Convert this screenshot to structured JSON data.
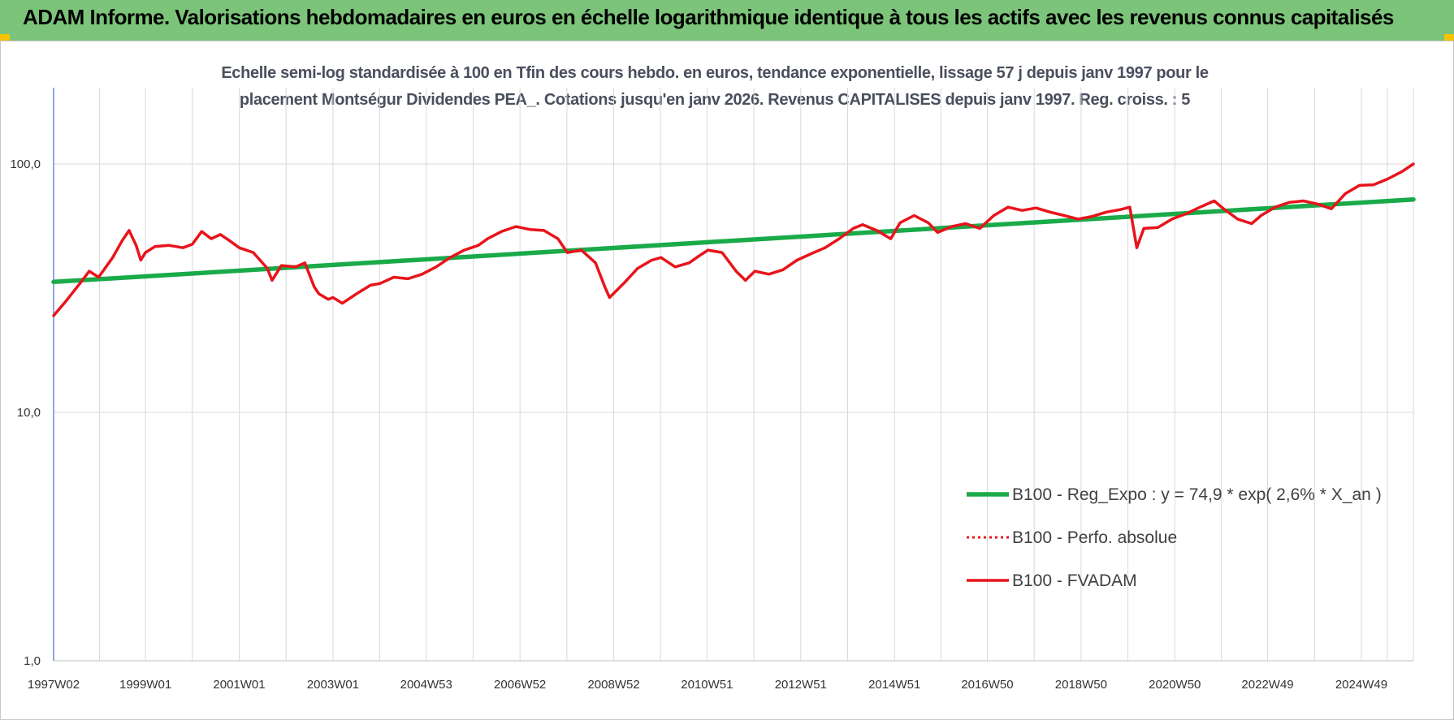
{
  "banner": {
    "title": "ADAM Informe. Valorisations hebdomadaires en euros en échelle logarithmique identique à tous les actifs avec les revenus connus capitalisés"
  },
  "colors": {
    "banner_bg": "#7cc47a",
    "trend_line": "#1aaa4a",
    "price_line": "#e8141c",
    "corner_marks": "#f5c400"
  },
  "chart_data": {
    "type": "line",
    "title_lines": [
      "Echelle semi-log standardisée à 100 en Tfin des cours hebdo. en euros, tendance exponentielle, lissage 57 j depuis janv 1997 pour le",
      "placement Montségur Dividendes PEA_. Cotations jusqu'en janv 2026. Revenus CAPITALISES depuis janv 1997. Reg. croiss. : 5"
    ],
    "y_scale": "log",
    "ylim": [
      1,
      200
    ],
    "y_ticks": [
      1,
      10,
      100
    ],
    "y_tick_labels": [
      "1,0",
      "10,0",
      "100,0"
    ],
    "xlim": [
      1997.04,
      2026.05
    ],
    "x_ticks": [
      1997.04,
      1999.0,
      2001.0,
      2003.0,
      2004.99,
      2006.99,
      2008.99,
      2010.98,
      2012.98,
      2014.98,
      2016.96,
      2018.96,
      2020.96,
      2022.94,
      2024.94
    ],
    "x_tick_labels": [
      "1997W02",
      "1999W01",
      "2001W01",
      "2003W01",
      "2004W53",
      "2006W52",
      "2008W52",
      "2010W51",
      "2012W51",
      "2014W51",
      "2016W50",
      "2018W50",
      "2020W50",
      "2022W49",
      "2024W49"
    ],
    "grid": "vertical",
    "legend_position": "bottom-right",
    "series": [
      {
        "name": "B100 - Reg_Expo : y = 74,9 * exp( 2,6% *  X_an )",
        "style": "solid-green",
        "x": [
          1997.04,
          2026.05
        ],
        "y": [
          33.5,
          72.0
        ]
      },
      {
        "name": "B100 - Perfo. absolue",
        "style": "dotted-red",
        "x": [],
        "y": []
      },
      {
        "name": "B100 - FVADAM",
        "style": "solid-red",
        "x": [
          1997.04,
          1997.3,
          1997.6,
          1997.8,
          1998.0,
          1998.3,
          1998.5,
          1998.65,
          1998.8,
          1998.9,
          1999.0,
          1999.2,
          1999.5,
          1999.8,
          2000.0,
          2000.2,
          2000.4,
          2000.6,
          2000.8,
          2001.0,
          2001.3,
          2001.6,
          2001.7,
          2001.9,
          2002.2,
          2002.4,
          2002.6,
          2002.7,
          2002.9,
          2003.0,
          2003.2,
          2003.5,
          2003.8,
          2004.0,
          2004.3,
          2004.6,
          2004.9,
          2005.2,
          2005.5,
          2005.8,
          2006.1,
          2006.3,
          2006.6,
          2006.9,
          2007.2,
          2007.5,
          2007.8,
          2008.0,
          2008.3,
          2008.6,
          2008.8,
          2008.9,
          2009.2,
          2009.5,
          2009.8,
          2010.0,
          2010.3,
          2010.6,
          2010.8,
          2011.0,
          2011.3,
          2011.6,
          2011.8,
          2012.0,
          2012.3,
          2012.6,
          2012.9,
          2013.2,
          2013.5,
          2013.8,
          2014.1,
          2014.3,
          2014.6,
          2014.9,
          2015.1,
          2015.4,
          2015.7,
          2015.9,
          2016.2,
          2016.5,
          2016.8,
          2017.1,
          2017.4,
          2017.7,
          2018.0,
          2018.3,
          2018.6,
          2018.9,
          2019.2,
          2019.5,
          2019.8,
          2020.0,
          2020.15,
          2020.3,
          2020.6,
          2020.9,
          2021.2,
          2021.5,
          2021.8,
          2022.0,
          2022.3,
          2022.6,
          2022.8,
          2023.1,
          2023.4,
          2023.7,
          2024.0,
          2024.3,
          2024.6,
          2024.9,
          2025.2,
          2025.5,
          2025.8,
          2026.05
        ],
        "y": [
          24.5,
          28.0,
          33.0,
          37.0,
          35.0,
          42.0,
          49.0,
          54.0,
          47.0,
          41.0,
          44.0,
          46.5,
          47.0,
          46.0,
          47.5,
          53.5,
          50.0,
          52.0,
          49.0,
          46.0,
          44.0,
          38.0,
          34.0,
          39.0,
          38.5,
          40.0,
          32.0,
          30.0,
          28.5,
          29.0,
          27.5,
          30.0,
          32.5,
          33.0,
          35.0,
          34.5,
          36.0,
          38.5,
          42.0,
          45.0,
          47.0,
          50.0,
          53.5,
          56.0,
          54.5,
          54.0,
          50.0,
          44.0,
          45.0,
          40.0,
          32.0,
          29.0,
          33.0,
          38.0,
          41.0,
          42.0,
          38.5,
          40.0,
          42.5,
          45.0,
          44.0,
          37.0,
          34.0,
          37.0,
          36.0,
          37.5,
          41.0,
          43.5,
          46.0,
          50.0,
          55.0,
          57.0,
          54.0,
          50.0,
          58.0,
          62.0,
          58.0,
          53.0,
          56.0,
          57.5,
          55.0,
          62.0,
          67.0,
          65.0,
          66.5,
          64.0,
          62.0,
          60.0,
          61.5,
          64.0,
          65.5,
          67.0,
          46.0,
          55.0,
          55.5,
          60.0,
          63.0,
          67.0,
          71.0,
          66.0,
          60.0,
          57.5,
          62.0,
          67.0,
          70.0,
          71.0,
          69.0,
          66.0,
          76.0,
          82.0,
          82.5,
          87.0,
          93.0,
          100.0
        ]
      }
    ]
  }
}
